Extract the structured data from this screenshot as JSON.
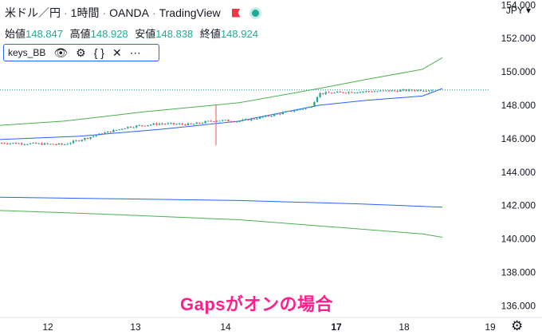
{
  "header": {
    "symbol": "米ドル／円",
    "interval": "1時間",
    "exchange": "OANDA",
    "platform": "TradingView",
    "sep": "·"
  },
  "ohlc": {
    "open_label": "始値",
    "open": "148.847",
    "high_label": "高値",
    "high": "148.928",
    "low_label": "安値",
    "low": "148.838",
    "close_label": "終値",
    "close": "148.924"
  },
  "indicator": {
    "name": "keys_BB",
    "icons": [
      "eye-icon",
      "gear-icon",
      "code-icon",
      "close-icon",
      "more-icon"
    ]
  },
  "currency_label": "JPY ▾",
  "overlay_text": "Gapsがオンの場合",
  "colors": {
    "up": "#26a69a",
    "down": "#ef5350",
    "mid_line": "#2962ff",
    "band_line": "#4caf50",
    "price_line": "#26a69a",
    "overlay": "#ff1e8c"
  },
  "chart_data": {
    "type": "line",
    "title": "",
    "y_tick_labels": [
      "154.000",
      "152.000",
      "150.000",
      "148.000",
      "146.000",
      "144.000",
      "142.000",
      "140.000",
      "138.000",
      "136.000"
    ],
    "x_tick_labels": [
      "12",
      "13",
      "14",
      "17",
      "18",
      "19"
    ],
    "ylim": [
      135.3,
      154.3
    ],
    "current_price": 148.924,
    "series": [
      {
        "role": "upper-band",
        "x": [
          0,
          80,
          180,
          300,
          400,
          460,
          530,
          555
        ],
        "y": [
          146.8,
          147.05,
          147.6,
          148.15,
          149.0,
          149.55,
          150.15,
          150.85
        ]
      },
      {
        "role": "middle-band",
        "x": [
          0,
          100,
          200,
          300,
          400,
          460,
          530,
          555
        ],
        "y": [
          145.95,
          146.15,
          146.55,
          147.05,
          148.0,
          148.3,
          148.55,
          149.0
        ]
      },
      {
        "role": "lower-band-upper",
        "x": [
          0,
          150,
          300,
          450,
          555
        ],
        "y": [
          142.5,
          142.4,
          142.3,
          142.1,
          141.9
        ]
      },
      {
        "role": "lower-band-lower",
        "x": [
          0,
          150,
          300,
          450,
          530,
          555
        ],
        "y": [
          141.7,
          141.45,
          141.15,
          140.6,
          140.3,
          140.1
        ]
      },
      {
        "role": "price",
        "x": [
          0,
          40,
          80,
          120,
          160,
          200,
          240,
          270,
          300,
          330,
          360,
          390,
          400,
          440,
          480,
          520,
          545
        ],
        "y": [
          145.75,
          145.7,
          145.65,
          146.2,
          146.7,
          146.9,
          146.85,
          147.1,
          147.05,
          147.3,
          147.6,
          147.9,
          148.7,
          148.8,
          148.85,
          148.9,
          148.924
        ]
      }
    ]
  }
}
